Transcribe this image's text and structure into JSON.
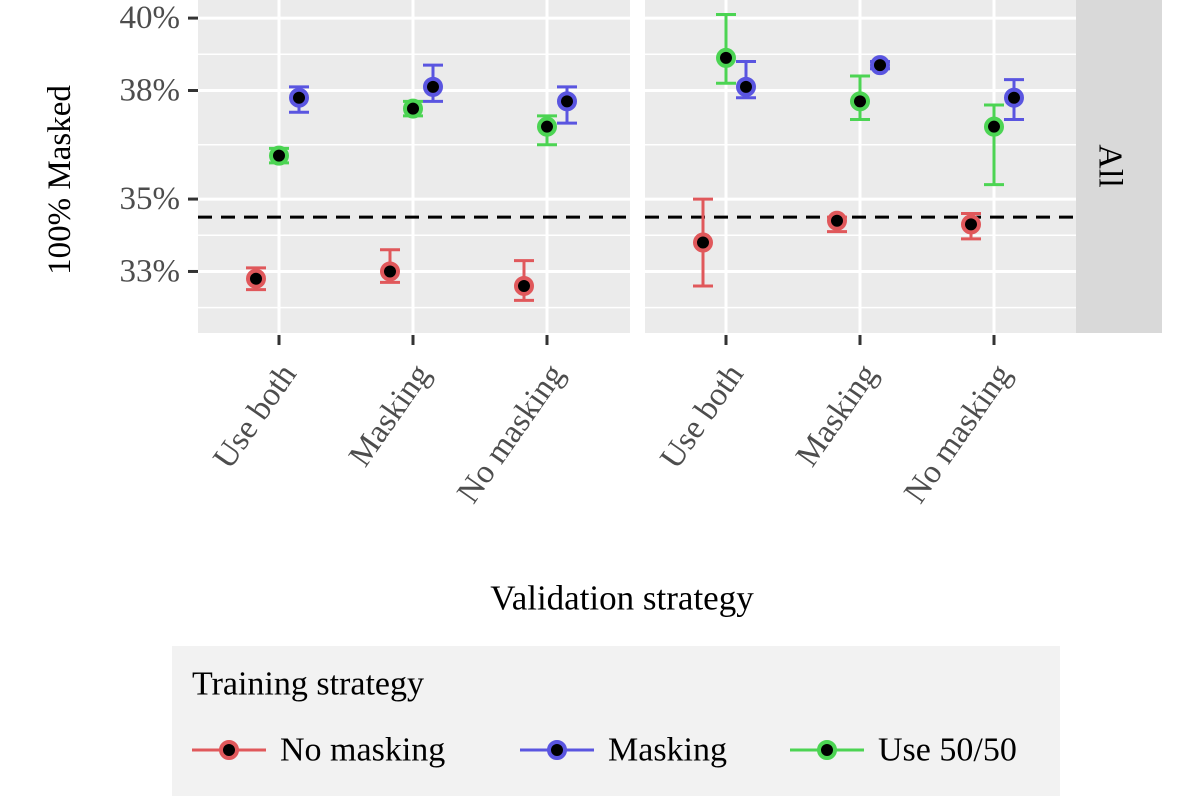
{
  "chart_data": {
    "type": "scatter",
    "subtype": "point-with-errorbars",
    "facets": [
      "",
      ""
    ],
    "strip_label": "All",
    "xlabel": "Validation strategy",
    "ylabel": "100% Masked",
    "categories": [
      "Use both",
      "Masking",
      "No masking"
    ],
    "y_ticks": [
      33,
      35,
      38,
      40
    ],
    "y_tick_labels": [
      "33%",
      "35%",
      "38%",
      "40%"
    ],
    "ylim": [
      31.3,
      40.5
    ],
    "reference_line": 34.5,
    "legend": {
      "title": "Training strategy",
      "position": "bottom",
      "entries": [
        "No masking",
        "Masking",
        "Use 50/50"
      ]
    },
    "colors": {
      "No masking": "#E0585B",
      "Masking": "#5A55E0",
      "Use 50/50": "#4CD453",
      "panel_bg": "#EBEBEB",
      "strip_bg": "#D9D9D9",
      "legend_bg": "#F2F2F2"
    },
    "series": [
      {
        "name": "No masking",
        "panels": [
          {
            "values": [
              32.8,
              33.0,
              32.6
            ],
            "lower": [
              32.5,
              32.7,
              32.2
            ],
            "upper": [
              33.1,
              33.6,
              33.3
            ]
          },
          {
            "values": [
              33.8,
              34.4,
              34.3
            ],
            "lower": [
              32.6,
              34.1,
              33.9
            ],
            "upper": [
              35.0,
              34.5,
              34.6
            ]
          }
        ]
      },
      {
        "name": "Masking",
        "panels": [
          {
            "values": [
              37.8,
              38.1,
              37.7
            ],
            "lower": [
              37.4,
              37.7,
              37.1
            ],
            "upper": [
              38.1,
              38.7,
              38.1
            ]
          },
          {
            "values": [
              38.1,
              38.7,
              37.8
            ],
            "lower": [
              37.8,
              38.6,
              37.2
            ],
            "upper": [
              38.8,
              38.8,
              38.3
            ]
          }
        ]
      },
      {
        "name": "Use 50/50",
        "panels": [
          {
            "values": [
              36.2,
              37.5,
              37.0
            ],
            "lower": [
              36.0,
              37.3,
              36.5
            ],
            "upper": [
              36.4,
              37.7,
              37.3
            ]
          },
          {
            "values": [
              38.9,
              37.7,
              37.0
            ],
            "lower": [
              38.2,
              37.2,
              35.4
            ],
            "upper": [
              40.1,
              38.4,
              37.6
            ]
          }
        ]
      }
    ]
  }
}
